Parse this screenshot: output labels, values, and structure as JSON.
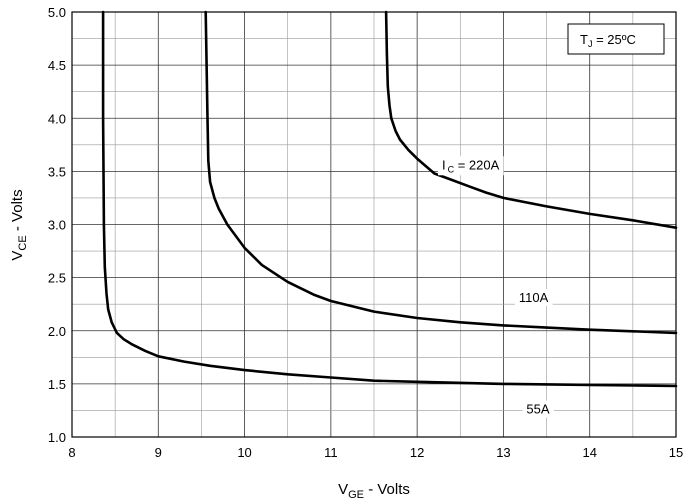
{
  "chart_data": {
    "type": "line",
    "title": "",
    "xlabel": {
      "main": "V",
      "sub": "GE",
      "rest": " - Volts"
    },
    "ylabel": {
      "main": "V",
      "sub": "CE",
      "rest": " - Volts"
    },
    "xlim": [
      8,
      15
    ],
    "ylim": [
      1.0,
      5.0
    ],
    "x_ticks": [
      "8",
      "9",
      "10",
      "11",
      "12",
      "13",
      "14",
      "15"
    ],
    "y_ticks": [
      "1.0",
      "1.5",
      "2.0",
      "2.5",
      "3.0",
      "3.5",
      "4.0",
      "4.5",
      "5.0"
    ],
    "x_minor_step": 0.5,
    "y_minor_step": 0.25,
    "grid": true,
    "legend": {
      "position": "top-right",
      "main": "T",
      "sub": "J",
      "rest": " = 25ºC"
    },
    "series": [
      {
        "label": "55A",
        "x": [
          8.36,
          8.36,
          8.37,
          8.38,
          8.4,
          8.42,
          8.46,
          8.52,
          8.6,
          8.7,
          8.85,
          9.0,
          9.3,
          9.6,
          10.0,
          10.5,
          11.0,
          11.5,
          12.0,
          13.0,
          14.0,
          15.0
        ],
        "y": [
          5.0,
          4.0,
          3.0,
          2.6,
          2.35,
          2.2,
          2.08,
          1.98,
          1.92,
          1.87,
          1.81,
          1.76,
          1.71,
          1.67,
          1.63,
          1.59,
          1.56,
          1.53,
          1.52,
          1.5,
          1.49,
          1.48
        ]
      },
      {
        "label": "110A",
        "x": [
          9.55,
          9.56,
          9.57,
          9.58,
          9.6,
          9.65,
          9.7,
          9.8,
          10.0,
          10.2,
          10.5,
          10.8,
          11.0,
          11.5,
          12.0,
          12.5,
          13.0,
          13.5,
          14.0,
          15.0
        ],
        "y": [
          5.0,
          4.5,
          4.0,
          3.6,
          3.4,
          3.25,
          3.15,
          3.0,
          2.78,
          2.62,
          2.46,
          2.34,
          2.28,
          2.18,
          2.12,
          2.08,
          2.05,
          2.03,
          2.01,
          1.98
        ]
      },
      {
        "label": "I_C = 220A",
        "x": [
          11.64,
          11.65,
          11.66,
          11.68,
          11.7,
          11.75,
          11.8,
          11.9,
          12.0,
          12.1,
          12.2,
          12.4,
          12.6,
          12.8,
          13.0,
          13.5,
          14.0,
          14.5,
          15.0
        ],
        "y": [
          5.0,
          4.6,
          4.3,
          4.12,
          4.0,
          3.88,
          3.8,
          3.7,
          3.62,
          3.55,
          3.48,
          3.42,
          3.36,
          3.3,
          3.25,
          3.17,
          3.1,
          3.04,
          2.97
        ]
      }
    ],
    "annotations": [
      {
        "id": "i220",
        "main": "I",
        "sub": "C",
        "rest": " = 220A",
        "x": 12.62,
        "y": 3.52
      },
      {
        "id": "a110",
        "text": "110A",
        "x": 13.35,
        "y": 2.27
      },
      {
        "id": "a55",
        "text": "55A",
        "x": 13.4,
        "y": 1.22
      }
    ]
  }
}
